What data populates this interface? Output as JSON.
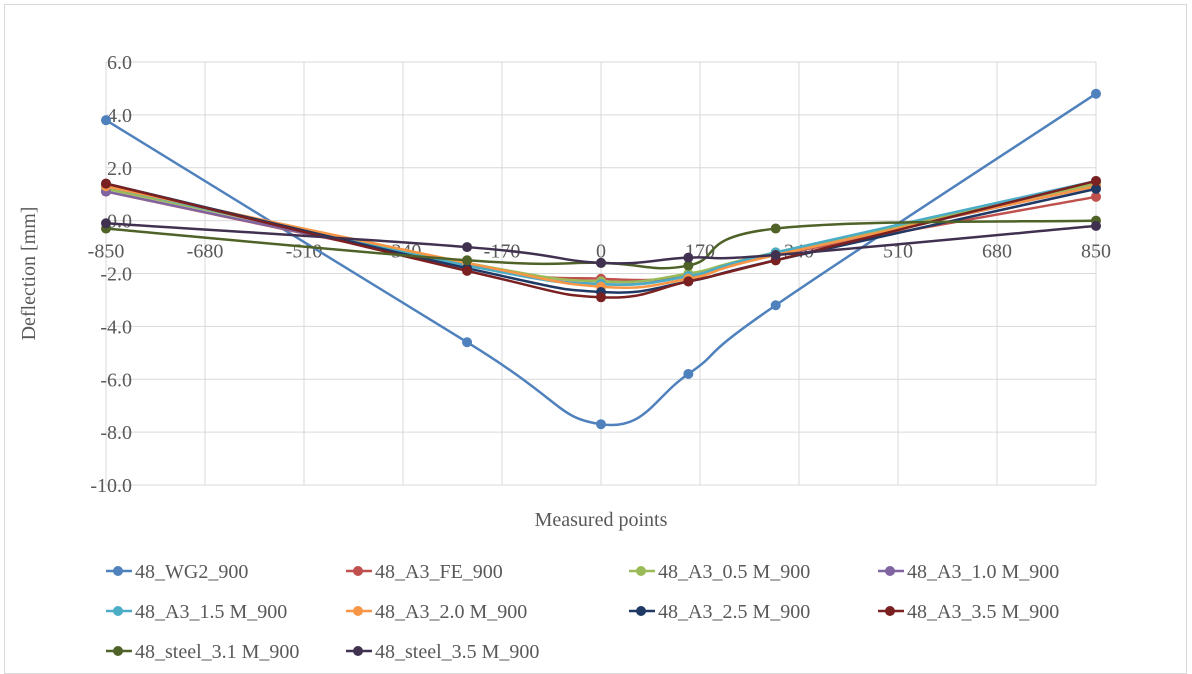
{
  "chart_data": {
    "type": "line",
    "title": "",
    "xlabel": "Measured points",
    "ylabel": "Deflection  [mm]",
    "xlim": [
      -850,
      850
    ],
    "ylim": [
      -10,
      6
    ],
    "x_ticks": [
      "-850",
      "-680",
      "-510",
      "-340",
      "-170",
      "0",
      "170",
      "340",
      "510",
      "680",
      "850"
    ],
    "y_ticks": [
      "6.0",
      "4.0",
      "2.0",
      "0.0",
      "-2.0",
      "-4.0",
      "-6.0",
      "-8.0",
      "-10.0"
    ],
    "grid": true,
    "legend_position": "bottom",
    "x": [
      -850,
      -230,
      0,
      150,
      300,
      850
    ],
    "series": [
      {
        "name": "48_WG2_900",
        "color": "#4f81bd",
        "values": [
          3.8,
          -4.6,
          -7.7,
          -5.8,
          -3.2,
          4.8
        ]
      },
      {
        "name": "48_A3_FE_900",
        "color": "#c0504d",
        "values": [
          1.1,
          -1.7,
          -2.2,
          -2.1,
          -1.3,
          0.9
        ]
      },
      {
        "name": "48_A3_0.5 M_900",
        "color": "#9bbb59",
        "values": [
          1.2,
          -1.6,
          -2.3,
          -2.0,
          -1.2,
          1.4
        ]
      },
      {
        "name": "48_A3_1.0 M_900",
        "color": "#8064a2",
        "values": [
          1.1,
          -1.7,
          -2.4,
          -2.1,
          -1.3,
          1.3
        ]
      },
      {
        "name": "48_A3_1.5 M_900",
        "color": "#4bacc6",
        "values": [
          1.3,
          -1.7,
          -2.4,
          -2.1,
          -1.2,
          1.5
        ]
      },
      {
        "name": "48_A3_2.0  M_900",
        "color": "#f79646",
        "values": [
          1.3,
          -1.6,
          -2.5,
          -2.2,
          -1.3,
          1.3
        ]
      },
      {
        "name": "48_A3_2.5  M_900",
        "color": "#1f3864",
        "values": [
          1.4,
          -1.8,
          -2.7,
          -2.3,
          -1.5,
          1.2
        ]
      },
      {
        "name": "48_A3_3.5 M_900",
        "color": "#7b2020",
        "values": [
          1.4,
          -1.9,
          -2.9,
          -2.3,
          -1.5,
          1.5
        ]
      },
      {
        "name": "48_steel_3.1 M_900",
        "color": "#4f6228",
        "values": [
          -0.3,
          -1.5,
          -1.6,
          -1.7,
          -0.3,
          0.0
        ]
      },
      {
        "name": "48_steel_3.5 M_900",
        "color": "#403151",
        "values": [
          -0.1,
          -1.0,
          -1.6,
          -1.4,
          -1.3,
          -0.2
        ]
      }
    ]
  }
}
